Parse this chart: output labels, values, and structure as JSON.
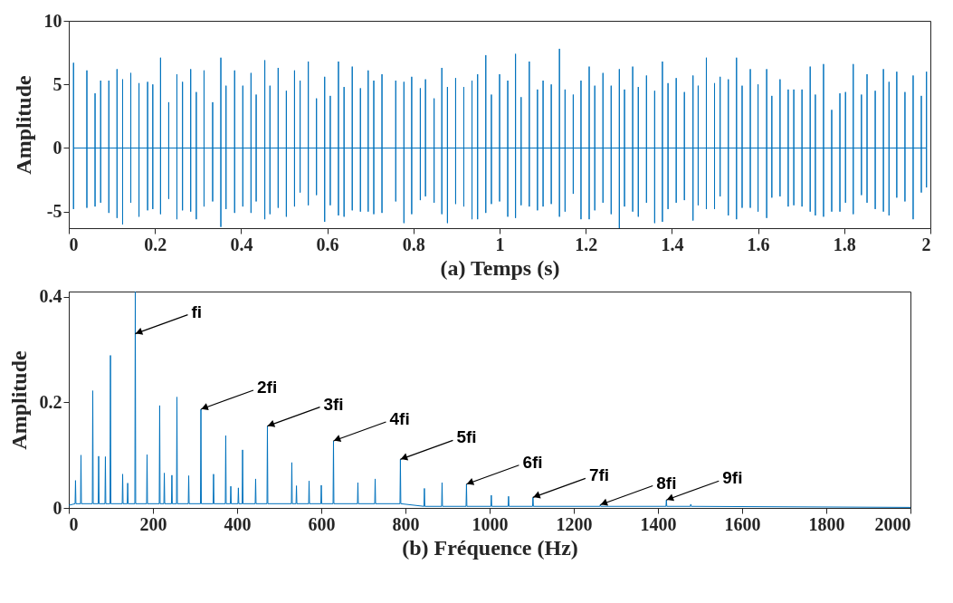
{
  "chart_data": [
    {
      "type": "line",
      "xlabel": "(a) Temps (s)",
      "ylabel": "Amplitude",
      "xlim": [
        0,
        2
      ],
      "ylim": [
        -6.3,
        10
      ],
      "xticks": [
        0,
        0.2,
        0.4,
        0.6,
        0.8,
        1,
        1.2,
        1.4,
        1.6,
        1.8,
        2
      ],
      "yticks": [
        -5,
        0,
        5,
        10
      ],
      "x": [
        0.011,
        0.011,
        0.011,
        0.011,
        0.042,
        0.042,
        0.042,
        0.042,
        0.061,
        0.061,
        0.061,
        0.061,
        0.074,
        0.074,
        0.074,
        0.074,
        0.093,
        0.093,
        0.093,
        0.093,
        0.112,
        0.112,
        0.112,
        0.112,
        0.125,
        0.125,
        0.125,
        0.125,
        0.144,
        0.144,
        0.144,
        0.144,
        0.163,
        0.163,
        0.163,
        0.163,
        0.183,
        0.183,
        0.183,
        0.183,
        0.195,
        0.195,
        0.195,
        0.195,
        0.213,
        0.213,
        0.213,
        0.213,
        0.232,
        0.232,
        0.232,
        0.232,
        0.251,
        0.251,
        0.251,
        0.251,
        0.264,
        0.264,
        0.264,
        0.264,
        0.283,
        0.283,
        0.283,
        0.283,
        0.296,
        0.296,
        0.296,
        0.296,
        0.314,
        0.314,
        0.314,
        0.314,
        0.334,
        0.334,
        0.334,
        0.334,
        0.353,
        0.353,
        0.353,
        0.353,
        0.365,
        0.365,
        0.365,
        0.365,
        0.385,
        0.385,
        0.385,
        0.385,
        0.404,
        0.404,
        0.404,
        0.404,
        0.423,
        0.423,
        0.423,
        0.423,
        0.435,
        0.435,
        0.435,
        0.435,
        0.455,
        0.455,
        0.455,
        0.455,
        0.467,
        0.467,
        0.467,
        0.467,
        0.486,
        0.486,
        0.486,
        0.486,
        0.505,
        0.505,
        0.505,
        0.505,
        0.524,
        0.524,
        0.524,
        0.524,
        0.537,
        0.537,
        0.537,
        0.537,
        0.556,
        0.556,
        0.556,
        0.556,
        0.575,
        0.575,
        0.575,
        0.575,
        0.594,
        0.594,
        0.594,
        0.594,
        0.607,
        0.607,
        0.607,
        0.607,
        0.626,
        0.626,
        0.626,
        0.626,
        0.639,
        0.639,
        0.639,
        0.639,
        0.658,
        0.658,
        0.658,
        0.658,
        0.677,
        0.677,
        0.677,
        0.677,
        0.695,
        0.695,
        0.695,
        0.695,
        0.708,
        0.708,
        0.708,
        0.708,
        0.727,
        0.727,
        0.727,
        0.727,
        0.759,
        0.759,
        0.759,
        0.759,
        0.778,
        0.778,
        0.778,
        0.778,
        0.796,
        0.796,
        0.796,
        0.796,
        0.816,
        0.816,
        0.816,
        0.816,
        0.828,
        0.828,
        0.828,
        0.828,
        0.848,
        0.848,
        0.848,
        0.848,
        0.866,
        0.866,
        0.866,
        0.866,
        0.879,
        0.879,
        0.879,
        0.879,
        0.898,
        0.898,
        0.898,
        0.898,
        0.917,
        0.917,
        0.917,
        0.917,
        0.936,
        0.936,
        0.936,
        0.936,
        0.949,
        0.949,
        0.949,
        0.949,
        0.968,
        0.968,
        0.968,
        0.968,
        0.981,
        0.981,
        0.981,
        0.981,
        1.0,
        1.0,
        1.0,
        1.0,
        1.019,
        1.019,
        1.019,
        1.019,
        1.037,
        1.037,
        1.037,
        1.037,
        1.05,
        1.05,
        1.05,
        1.05,
        1.069,
        1.069,
        1.069,
        1.069,
        1.088,
        1.088,
        1.088,
        1.088,
        1.101,
        1.101,
        1.101,
        1.101,
        1.12,
        1.12,
        1.12,
        1.12,
        1.139,
        1.139,
        1.139,
        1.139,
        1.152,
        1.152,
        1.152,
        1.152,
        1.171,
        1.171,
        1.171,
        1.171,
        1.189,
        1.189,
        1.189,
        1.189,
        1.208,
        1.208,
        1.208,
        1.208,
        1.221,
        1.221,
        1.221,
        1.221,
        1.24,
        1.24,
        1.24,
        1.24,
        1.259,
        1.259,
        1.259,
        1.259,
        1.278,
        1.278,
        1.278,
        1.278,
        1.29,
        1.29,
        1.29,
        1.29,
        1.309,
        1.309,
        1.309,
        1.309,
        1.322,
        1.322,
        1.322,
        1.322,
        1.341,
        1.341,
        1.341,
        1.341,
        1.36,
        1.36,
        1.36,
        1.36,
        1.378,
        1.378,
        1.378,
        1.378,
        1.391,
        1.391,
        1.391,
        1.391,
        1.41,
        1.41,
        1.41,
        1.41,
        1.429,
        1.429,
        1.429,
        1.429,
        1.449,
        1.449,
        1.449,
        1.449,
        1.461,
        1.461,
        1.461,
        1.461,
        1.48,
        1.48,
        1.48,
        1.48,
        1.499,
        1.499,
        1.499,
        1.499,
        1.512,
        1.512,
        1.512,
        1.512,
        1.531,
        1.531,
        1.531,
        1.531,
        1.55,
        1.55,
        1.55,
        1.55,
        1.563,
        1.563,
        1.563,
        1.563,
        1.582,
        1.582,
        1.582,
        1.582,
        1.6,
        1.6,
        1.6,
        1.6,
        1.62,
        1.62,
        1.62,
        1.62,
        1.632,
        1.632,
        1.632,
        1.632,
        1.651,
        1.651,
        1.651,
        1.651,
        1.67,
        1.67,
        1.67,
        1.67,
        1.683,
        1.683,
        1.683,
        1.683,
        1.702,
        1.702,
        1.702,
        1.702,
        1.721,
        1.721,
        1.721,
        1.721,
        1.733,
        1.733,
        1.733,
        1.733,
        1.752,
        1.752,
        1.752,
        1.752,
        1.771,
        1.771,
        1.771,
        1.771,
        1.79,
        1.79,
        1.79,
        1.79,
        1.803,
        1.803,
        1.803,
        1.803,
        1.821,
        1.821,
        1.821,
        1.821,
        1.84,
        1.84,
        1.84,
        1.84,
        1.853,
        1.853,
        1.853,
        1.853,
        1.872,
        1.872,
        1.872,
        1.872,
        1.891,
        1.891,
        1.891,
        1.891,
        1.904,
        1.904,
        1.904,
        1.904,
        1.922,
        1.922,
        1.922,
        1.922,
        1.941,
        1.941,
        1.941,
        1.941,
        1.96,
        1.96,
        1.96,
        1.96,
        1.979,
        1.979,
        1.979,
        1.979,
        1.991,
        1.991,
        1.991,
        1.991
      ],
      "series": [
        {
          "color": "#0072bd",
          "values": [
            0,
            6.7,
            -4.8,
            0,
            0,
            6.1,
            -4.7,
            0,
            0,
            4.3,
            -4.6,
            0,
            0,
            5.3,
            -4.3,
            0,
            0,
            5.3,
            -5.1,
            0,
            0,
            6.2,
            -5.5,
            0,
            0,
            5.4,
            -6.0,
            0,
            0,
            5.9,
            -4.3,
            0,
            0,
            5.1,
            -5.4,
            0,
            0,
            5.2,
            -4.9,
            0,
            0,
            5.0,
            -4.8,
            0,
            0,
            7.1,
            -5.2,
            0,
            0,
            3.6,
            -4.0,
            0,
            0,
            5.8,
            -5.6,
            0,
            0,
            5.2,
            -4.9,
            0,
            0,
            6.2,
            -5.0,
            0,
            0,
            4.4,
            -5.6,
            0,
            0,
            6.1,
            -4.6,
            0,
            0,
            3.6,
            -4.2,
            0,
            0,
            7.1,
            -6.2,
            0,
            0,
            4.9,
            -4.8,
            0,
            0,
            6.1,
            -5.1,
            0,
            0,
            4.9,
            -4.6,
            0,
            0,
            5.9,
            -5.1,
            0,
            0,
            4.2,
            -4.2,
            0,
            0,
            6.9,
            -5.6,
            0,
            0,
            4.9,
            -5.2,
            0,
            0,
            6.3,
            -4.7,
            0,
            0,
            4.5,
            -5.4,
            0,
            0,
            6.1,
            -4.6,
            0,
            0,
            5.3,
            -3.5,
            0,
            0,
            6.8,
            -4.5,
            0,
            0,
            3.9,
            -3.7,
            0,
            0,
            5.6,
            -5.8,
            0,
            0,
            4.1,
            -4.5,
            0,
            0,
            6.8,
            -5.3,
            0,
            0,
            4.8,
            -5.4,
            0,
            0,
            6.4,
            -4.9,
            0,
            0,
            4.7,
            -5.0,
            0,
            0,
            6.1,
            -5.0,
            0,
            0,
            5.3,
            -5.2,
            0,
            0,
            5.8,
            -5.1,
            0,
            0,
            5.3,
            -4.2,
            0,
            0,
            5.2,
            -5.9,
            0,
            0,
            5.6,
            -5.2,
            0,
            0,
            4.7,
            -4.1,
            0,
            0,
            5.4,
            -3.8,
            0,
            0,
            3.9,
            -4.3,
            0,
            0,
            6.3,
            -5.2,
            0,
            0,
            4.8,
            -5.9,
            0,
            0,
            5.5,
            -4.4,
            0,
            0,
            4.8,
            -4.6,
            0,
            0,
            5.3,
            -5.6,
            0,
            0,
            5.8,
            -5.6,
            0,
            0,
            7.3,
            -5.1,
            0,
            0,
            4.2,
            -4.4,
            0,
            0,
            5.8,
            -4.2,
            0,
            0,
            5.3,
            -5.4,
            0,
            0,
            7.4,
            -5.5,
            0,
            0,
            4.0,
            -4.5,
            0,
            0,
            6.8,
            -4.6,
            0,
            0,
            4.6,
            -4.9,
            0,
            0,
            5.3,
            -4.6,
            0,
            0,
            5.0,
            -4.4,
            0,
            0,
            7.8,
            -5.4,
            0,
            0,
            4.6,
            -5.0,
            0,
            0,
            4.2,
            -3.6,
            0,
            0,
            5.3,
            -5.6,
            0,
            0,
            6.4,
            -5.6,
            0,
            0,
            4.9,
            -4.9,
            0,
            0,
            5.9,
            -4.3,
            0,
            0,
            4.9,
            -5.2,
            0,
            0,
            6.2,
            -6.3,
            0,
            0,
            4.6,
            -4.6,
            0,
            0,
            6.4,
            -5.0,
            0,
            0,
            4.8,
            -5.4,
            0,
            0,
            5.7,
            -4.3,
            0,
            0,
            4.5,
            -5.9,
            0,
            0,
            6.8,
            -5.8,
            0,
            0,
            5.1,
            -4.8,
            0,
            0,
            5.5,
            -4.3,
            0,
            0,
            4.4,
            -4.1,
            0,
            0,
            5.7,
            -5.7,
            0,
            0,
            4.9,
            -4.5,
            0,
            0,
            7.1,
            -4.8,
            0,
            0,
            5.1,
            -4.8,
            0,
            0,
            5.6,
            -3.8,
            0,
            0,
            5.4,
            -5.3,
            0,
            0,
            7.1,
            -5.6,
            0,
            0,
            4.9,
            -4.7,
            0,
            0,
            6.2,
            -4.7,
            0,
            0,
            5.0,
            -5.0,
            0,
            0,
            6.2,
            -5.5,
            0,
            0,
            4.1,
            -3.9,
            0,
            0,
            5.4,
            -3.8,
            0,
            0,
            4.6,
            -4.6,
            0,
            0,
            4.6,
            -4.5,
            0,
            0,
            4.6,
            -4.6,
            0,
            0,
            6.4,
            -5.0,
            0,
            0,
            4.2,
            -5.3,
            0,
            0,
            6.6,
            -5.4,
            0,
            0,
            3.0,
            -5.0,
            0,
            0,
            4.3,
            -5.0,
            0,
            0,
            4.4,
            -4.3,
            0,
            0,
            6.6,
            -5.2,
            0,
            0,
            4.2,
            -3.7,
            0,
            0,
            5.8,
            -4.3,
            0,
            0,
            4.5,
            -4.8,
            0,
            0,
            6.2,
            -5.0,
            0,
            0,
            5.2,
            -5.3,
            0,
            0,
            6.0,
            -3.9,
            0,
            0,
            4.4,
            -4.2,
            0,
            0,
            5.7,
            -5.6,
            0,
            0,
            4.1,
            -3.5,
            0,
            0,
            6.0,
            -3.1,
            0
          ]
        }
      ]
    },
    {
      "type": "line",
      "xlabel": "(b) Fréquence (Hz)",
      "ylabel": "Amplitude",
      "xlim": [
        0,
        2000
      ],
      "ylim": [
        0,
        0.41
      ],
      "xticks": [
        0,
        200,
        400,
        600,
        800,
        1000,
        1200,
        1400,
        1600,
        1800,
        2000
      ],
      "yticks": [
        0,
        0.2,
        0.4
      ],
      "x": [
        0,
        15,
        16,
        17,
        28,
        29,
        30,
        56,
        57,
        58,
        70,
        71,
        72,
        86,
        87,
        88,
        98,
        99,
        100,
        127,
        128,
        129,
        139,
        140,
        141,
        157,
        158,
        159,
        185,
        186,
        187,
        215,
        216,
        217,
        226,
        227,
        228,
        244,
        245,
        246,
        256,
        257,
        258,
        284,
        285,
        286,
        313,
        314,
        315,
        343,
        344,
        345,
        372,
        373,
        374,
        384,
        385,
        386,
        402,
        403,
        404,
        412,
        413,
        414,
        443,
        444,
        445,
        471,
        472,
        473,
        529,
        530,
        531,
        540,
        541,
        542,
        570,
        571,
        572,
        599,
        600,
        601,
        628,
        629,
        630,
        686,
        687,
        688,
        727,
        728,
        729,
        787,
        788,
        789,
        844,
        845,
        846,
        886,
        887,
        888,
        944,
        945,
        946,
        1003,
        1004,
        1005,
        1044,
        1045,
        1046,
        1102,
        1103,
        1104,
        1262,
        1263,
        1264,
        1419,
        1420,
        1421,
        1477,
        1478,
        1479,
        2000
      ],
      "series": [
        {
          "color": "#0072bd",
          "values": [
            0.005,
            0.008,
            0.052,
            0.008,
            0.008,
            0.1,
            0.008,
            0.008,
            0.222,
            0.008,
            0.008,
            0.098,
            0.008,
            0.008,
            0.097,
            0.008,
            0.008,
            0.289,
            0.008,
            0.008,
            0.064,
            0.008,
            0.008,
            0.047,
            0.008,
            0.008,
            0.41,
            0.008,
            0.008,
            0.101,
            0.008,
            0.008,
            0.194,
            0.008,
            0.008,
            0.066,
            0.008,
            0.008,
            0.062,
            0.008,
            0.008,
            0.21,
            0.008,
            0.008,
            0.061,
            0.008,
            0.008,
            0.187,
            0.008,
            0.008,
            0.064,
            0.008,
            0.008,
            0.137,
            0.008,
            0.008,
            0.041,
            0.008,
            0.008,
            0.038,
            0.008,
            0.008,
            0.11,
            0.008,
            0.008,
            0.055,
            0.008,
            0.008,
            0.155,
            0.008,
            0.008,
            0.086,
            0.008,
            0.008,
            0.042,
            0.008,
            0.008,
            0.051,
            0.008,
            0.008,
            0.043,
            0.008,
            0.008,
            0.127,
            0.008,
            0.008,
            0.048,
            0.008,
            0.008,
            0.055,
            0.008,
            0.008,
            0.092,
            0.008,
            0.003,
            0.037,
            0.003,
            0.003,
            0.048,
            0.003,
            0.003,
            0.045,
            0.003,
            0.003,
            0.024,
            0.003,
            0.003,
            0.022,
            0.003,
            0.003,
            0.02,
            0.003,
            0.003,
            0.006,
            0.003,
            0.003,
            0.015,
            0.003,
            0.003,
            0.007,
            0.003,
            0.001
          ]
        }
      ],
      "annotations": [
        {
          "text": "fi",
          "x": 158,
          "y": 0.33
        },
        {
          "text": "2fi",
          "x": 314,
          "y": 0.187
        },
        {
          "text": "3fi",
          "x": 472,
          "y": 0.155
        },
        {
          "text": "4fi",
          "x": 629,
          "y": 0.127
        },
        {
          "text": "5fi",
          "x": 788,
          "y": 0.092
        },
        {
          "text": "6fi",
          "x": 945,
          "y": 0.045
        },
        {
          "text": "7fi",
          "x": 1103,
          "y": 0.02
        },
        {
          "text": "8fi",
          "x": 1263,
          "y": 0.006
        },
        {
          "text": "9fi",
          "x": 1420,
          "y": 0.015
        }
      ]
    }
  ]
}
